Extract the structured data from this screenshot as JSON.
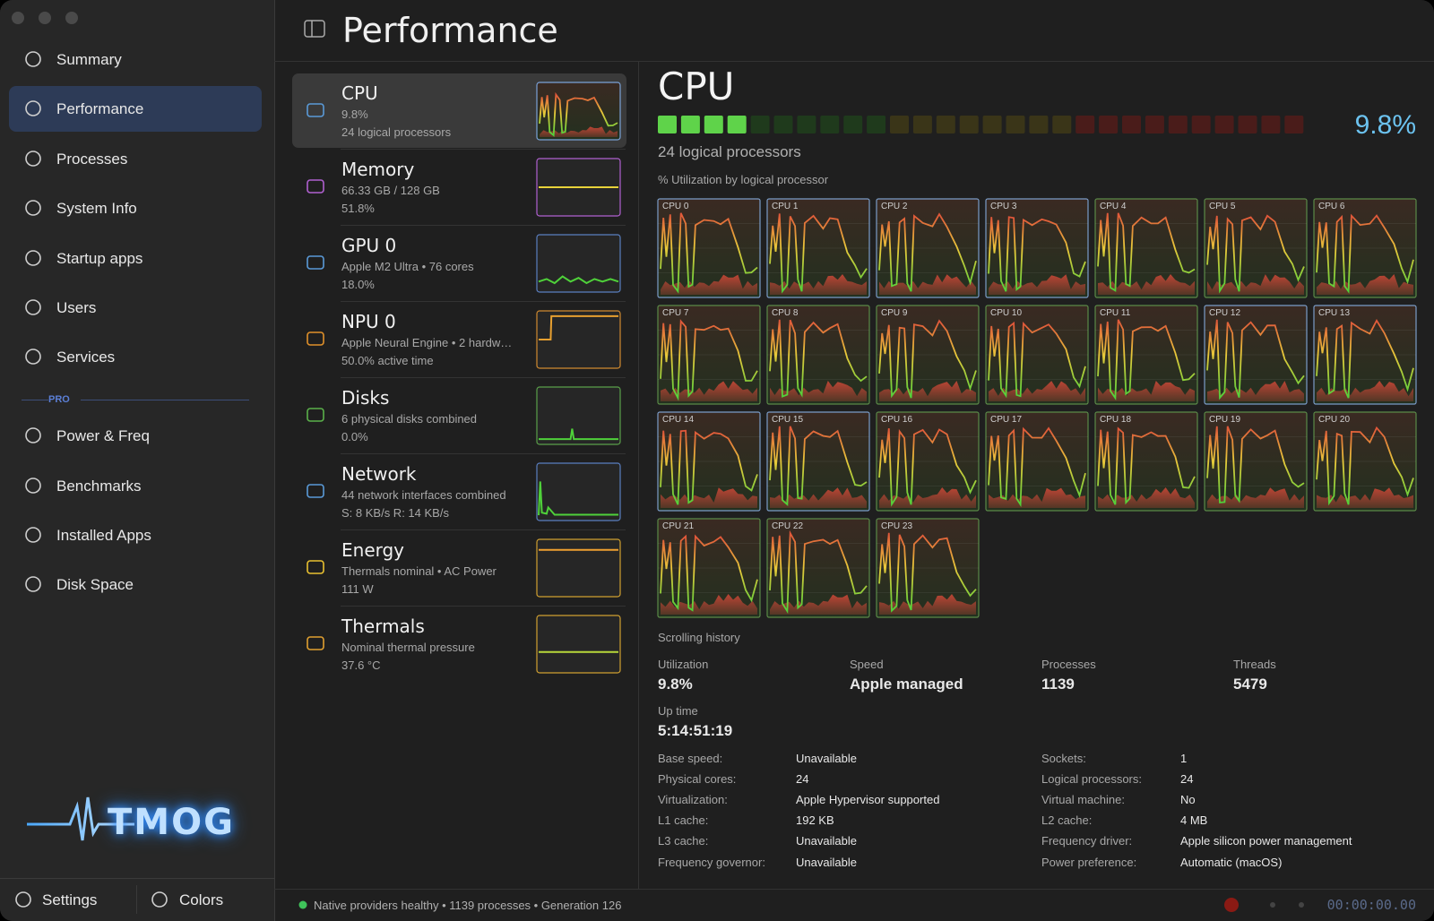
{
  "sidebar": {
    "items": [
      "Summary",
      "Performance",
      "Processes",
      "System Info",
      "Startup apps",
      "Users",
      "Services"
    ],
    "pro_label": "PRO",
    "pro_items": [
      "Power & Freq",
      "Benchmarks",
      "Installed Apps",
      "Disk Space"
    ],
    "logo": "TMOG",
    "settings": "Settings",
    "colors": "Colors"
  },
  "header": {
    "title": "Performance"
  },
  "devices": [
    {
      "name": "CPU",
      "lines": [
        "9.8%",
        "24 logical processors"
      ]
    },
    {
      "name": "Memory",
      "lines": [
        "66.33 GB / 128 GB",
        "51.8%"
      ]
    },
    {
      "name": "GPU 0",
      "lines": [
        "Apple M2 Ultra • 76 cores",
        "18.0%"
      ]
    },
    {
      "name": "NPU 0",
      "lines": [
        "Apple Neural Engine • 2 hardw…",
        "50.0% active time"
      ]
    },
    {
      "name": "Disks",
      "lines": [
        "6 physical disks combined",
        "0.0%"
      ]
    },
    {
      "name": "Network",
      "lines": [
        "44 network interfaces combined",
        "S: 8 KB/s  R: 14 KB/s"
      ]
    },
    {
      "name": "Energy",
      "lines": [
        "Thermals nominal • AC Power",
        "111 W"
      ]
    },
    {
      "name": "Thermals",
      "lines": [
        "Nominal thermal pressure",
        "37.6 °C"
      ]
    }
  ],
  "detail": {
    "title": "CPU",
    "utilization": "9.8%",
    "subtitle": "24 logical processors",
    "grid_label": "% Utilization by logical processor",
    "cores": [
      "CPU 0",
      "CPU 1",
      "CPU 2",
      "CPU 3",
      "CPU 4",
      "CPU 5",
      "CPU 6",
      "CPU 7",
      "CPU 8",
      "CPU 9",
      "CPU 10",
      "CPU 11",
      "CPU 12",
      "CPU 13",
      "CPU 14",
      "CPU 15",
      "CPU 16",
      "CPU 17",
      "CPU 18",
      "CPU 19",
      "CPU 20",
      "CPU 21",
      "CPU 22",
      "CPU 23"
    ],
    "history_label": "Scrolling history",
    "stats": [
      {
        "label": "Utilization",
        "value": "9.8%"
      },
      {
        "label": "Speed",
        "value": "Apple managed"
      },
      {
        "label": "Processes",
        "value": "1139"
      },
      {
        "label": "Threads",
        "value": "5479"
      }
    ],
    "uptime": {
      "label": "Up time",
      "value": "5:14:51:19"
    },
    "specs_left": [
      [
        "Base speed:",
        "Unavailable"
      ],
      [
        "Physical cores:",
        "24"
      ],
      [
        "Virtualization:",
        "Apple Hypervisor supported"
      ],
      [
        "L1 cache:",
        "192 KB"
      ],
      [
        "L3 cache:",
        "Unavailable"
      ],
      [
        "Frequency governor:",
        "Unavailable"
      ]
    ],
    "specs_right": [
      [
        "Sockets:",
        "1"
      ],
      [
        "Logical processors:",
        "24"
      ],
      [
        "Virtual machine:",
        "No"
      ],
      [
        "L2 cache:",
        "4 MB"
      ],
      [
        "Frequency driver:",
        "Apple silicon power management"
      ],
      [
        "Power preference:",
        "Automatic (macOS)"
      ]
    ]
  },
  "status": {
    "text": "Native providers healthy • 1139 processes • Generation 126",
    "timer": "00:00:00.00"
  }
}
